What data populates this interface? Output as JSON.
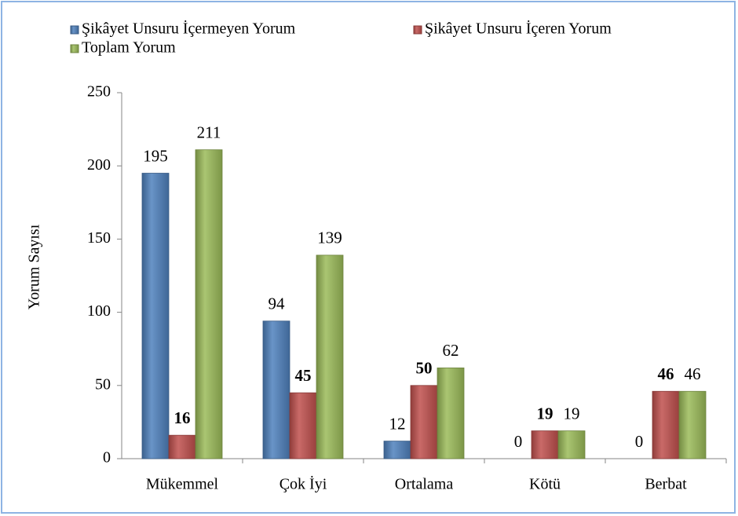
{
  "chart_data": {
    "type": "bar",
    "y_label": "Yorum Sayısı",
    "categories": [
      "Mükemmel",
      "Çok İyi",
      "Ortalama",
      "Kötü",
      "Berbat"
    ],
    "series": [
      {
        "name": "Şikâyet Unsuru İçermeyen Yorum",
        "color": "#4f81bd",
        "values": [
          195,
          94,
          12,
          0,
          0
        ]
      },
      {
        "name": "Şikâyet Unsuru İçeren Yorum",
        "color": "#c0504d",
        "values": [
          16,
          45,
          50,
          19,
          46
        ]
      },
      {
        "name": "Toplam Yorum",
        "color": "#9bbb59",
        "values": [
          211,
          139,
          62,
          19,
          46
        ]
      }
    ],
    "ylim": [
      0,
      250
    ],
    "yticks": [
      0,
      50,
      100,
      150,
      200,
      250
    ],
    "grid": false
  }
}
